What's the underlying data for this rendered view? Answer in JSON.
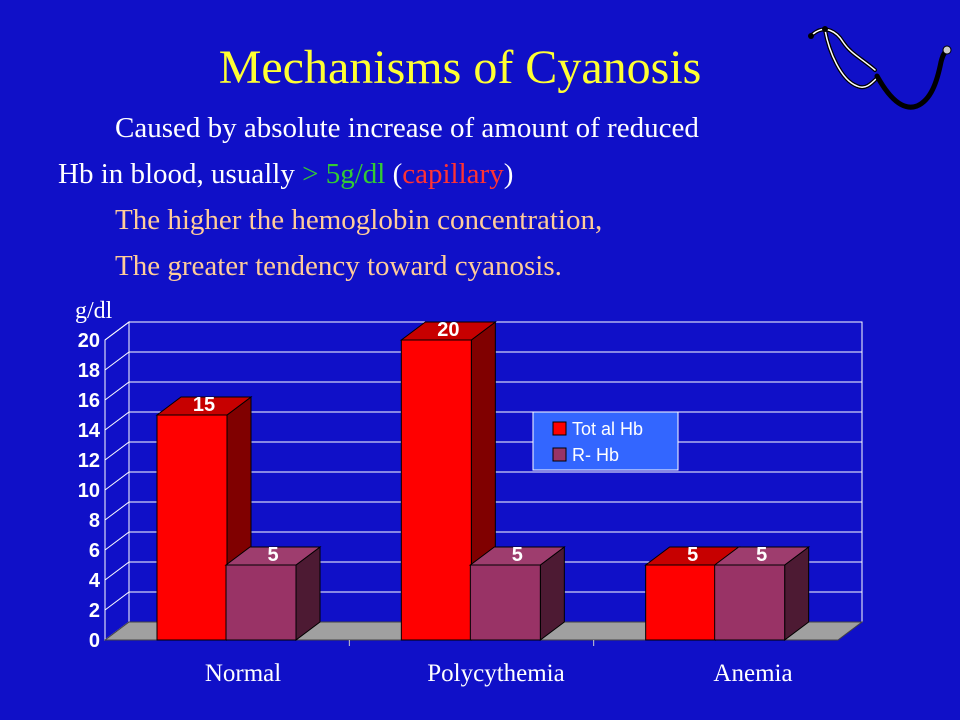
{
  "slide": {
    "title": "Mechanisms of Cyanosis",
    "line1": "Caused by absolute increase of amount of reduced",
    "line2_start": "Hb in blood, usually ",
    "line2_threshold": "> 5g/dl",
    "line2_paren_open": " (",
    "line2_note": "capillary",
    "line2_paren_close": ")",
    "line3": "The higher the hemoglobin concentration,",
    "line4": "The greater tendency toward cyanosis.",
    "icon": "stethoscope-icon"
  },
  "colors": {
    "background": "#1010c8",
    "title": "#ffff33",
    "body_text": "#ffffff",
    "highlight_text": "#ffcc99",
    "threshold": "#33cc33",
    "note": "#ff3333"
  },
  "chart_data": {
    "type": "bar",
    "style": "3d",
    "ylabel": "g/dl",
    "categories": [
      "Normal",
      "Polycythemia",
      "Anemia"
    ],
    "series": [
      {
        "name": "Tot al   Hb",
        "values": [
          15,
          20,
          5
        ],
        "color": "#ff0000"
      },
      {
        "name": "R- Hb",
        "values": [
          5,
          5,
          5
        ],
        "color": "#993366"
      }
    ],
    "ylim": [
      0,
      20
    ],
    "yticks": [
      0,
      2,
      4,
      6,
      8,
      10,
      12,
      14,
      16,
      18,
      20
    ],
    "grid": true,
    "legend_position": "center-right",
    "data_labels": true
  }
}
